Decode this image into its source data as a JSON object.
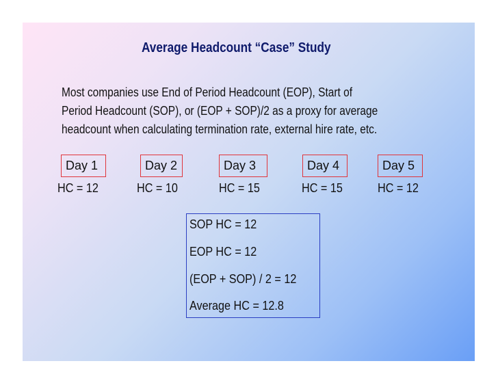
{
  "slide": {
    "title": "Average Headcount “Case” Study",
    "paragraph_lines": [
      "Most companies use End of Period Headcount (EOP), Start of",
      "Period Headcount (SOP), or (EOP + SOP)/2 as a proxy for average",
      "headcount when calculating termination rate, external hire rate, etc."
    ],
    "days": [
      {
        "label": "Day 1",
        "hc": "HC = 12"
      },
      {
        "label": "Day 2",
        "hc": "HC = 10"
      },
      {
        "label": "Day 3",
        "hc": "HC = 15"
      },
      {
        "label": "Day 4",
        "hc": "HC = 15"
      },
      {
        "label": "Day 5",
        "hc": "HC = 12"
      }
    ],
    "summary": [
      "SOP HC = 12",
      "EOP HC = 12",
      "(EOP + SOP) / 2 = 12",
      "Average HC = 12.8"
    ]
  },
  "colors": {
    "title": "#0f1a6b",
    "day_box_border": "#e0343a",
    "summary_box_border": "#2a3ec2"
  }
}
